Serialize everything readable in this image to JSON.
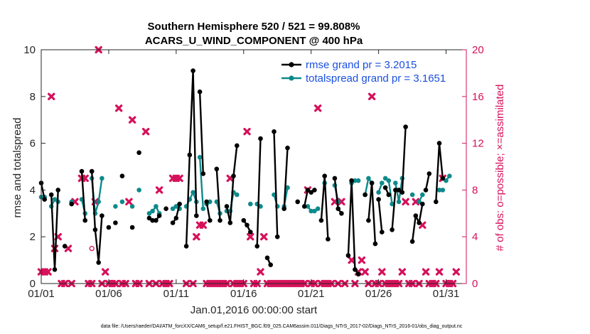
{
  "chart_data": {
    "type": "line",
    "title": "Southern Hemisphere 520 / 521 = 99.808%",
    "subtitle": "ACARS_U_WIND_COMPONENT @ 400 hPa",
    "xlabel": "Jan.01,2016 00:00:00 start",
    "ylabel": "rmse and totalspread",
    "ylabel_right": "# of obs: o=possible; ×=assimilated",
    "xlim": [
      0,
      31.5
    ],
    "ylim": [
      0,
      10
    ],
    "ylim_right": [
      0,
      20
    ],
    "x_ticks": [
      0,
      5,
      10,
      15,
      20,
      25,
      30
    ],
    "x_tick_labels": [
      "01/01",
      "01/06",
      "01/11",
      "01/16",
      "01/21",
      "01/26",
      "01/31"
    ],
    "y_ticks": [
      "0",
      "2",
      "4",
      "6",
      "8",
      "10"
    ],
    "y_ticks_right": [
      "0",
      "4",
      "8",
      "12",
      "16",
      "20"
    ],
    "legend_position": "top-right",
    "series": [
      {
        "name": "rmse grand pr = 3.2015",
        "color": "#000000",
        "axis": "left",
        "segments": [
          [
            [
              0.0,
              4.3
            ],
            [
              0.25,
              3.6
            ]
          ],
          [
            [
              0.75,
              3.8
            ],
            [
              1.0,
              0.6
            ],
            [
              1.25,
              4.0
            ]
          ],
          [
            [
              1.75,
              1.6
            ]
          ],
          [
            [
              2.25,
              3.4
            ]
          ],
          [
            [
              3.0,
              4.8
            ],
            [
              3.25,
              2.7
            ]
          ],
          [
            [
              3.75,
              4.8
            ],
            [
              4.0,
              2.3
            ],
            [
              4.25,
              0.9
            ],
            [
              4.5,
              2.9
            ]
          ],
          [
            [
              5.0,
              2.4
            ]
          ],
          [
            [
              5.5,
              2.6
            ]
          ],
          [
            [
              6.0,
              4.6
            ]
          ],
          [
            [
              6.75,
              2.4
            ]
          ],
          [
            [
              7.25,
              5.6
            ]
          ],
          [
            [
              8.0,
              2.8
            ],
            [
              8.25,
              2.7
            ],
            [
              8.5,
              2.7
            ],
            [
              8.75,
              2.9
            ]
          ],
          [
            [
              9.25,
              3.2
            ]
          ],
          [
            [
              9.75,
              2.6
            ],
            [
              10.0,
              2.8
            ],
            [
              10.25,
              3.4
            ]
          ],
          [
            [
              10.75,
              1.6
            ],
            [
              11.0,
              5.5
            ],
            [
              11.25,
              9.1
            ],
            [
              11.5,
              2.9
            ]
          ],
          [
            [
              11.75,
              8.2
            ],
            [
              12.0,
              4.7
            ]
          ],
          [
            [
              12.25,
              3.5
            ],
            [
              12.5,
              2.7
            ]
          ],
          [
            [
              13.0,
              4.9
            ],
            [
              13.25,
              2.7
            ]
          ],
          [
            [
              13.75,
              3.3
            ],
            [
              14.0,
              2.6
            ],
            [
              14.25,
              4.6
            ],
            [
              14.5,
              5.9
            ]
          ],
          [
            [
              15.0,
              2.7
            ],
            [
              15.25,
              2.5
            ],
            [
              15.5,
              2.2
            ]
          ],
          [
            [
              16.0,
              1.6
            ],
            [
              16.25,
              6.2
            ]
          ],
          [
            [
              16.75,
              1.1
            ],
            [
              17.0,
              0.8
            ]
          ],
          [
            [
              17.25,
              6.5
            ],
            [
              17.5,
              2.0
            ]
          ],
          [
            [
              18.0,
              3.2
            ],
            [
              18.25,
              5.8
            ]
          ],
          [
            [
              19.0,
              3.5
            ]
          ],
          [
            [
              19.5,
              3.3
            ],
            [
              19.75,
              4.0
            ],
            [
              20.0,
              3.9
            ],
            [
              20.25,
              4.0
            ]
          ],
          [
            [
              20.75,
              2.7
            ],
            [
              21.0,
              4.6
            ],
            [
              21.25,
              1.9
            ]
          ],
          [
            [
              21.75,
              4.5
            ],
            [
              22.0,
              3.2
            ],
            [
              22.25,
              3.0
            ]
          ],
          [
            [
              22.75,
              1.2
            ],
            [
              23.0,
              4.4
            ],
            [
              23.25,
              0.6
            ],
            [
              23.5,
              0.4
            ]
          ],
          [
            [
              24.0,
              3.8
            ]
          ],
          [
            [
              24.25,
              2.7
            ],
            [
              24.5,
              4.3
            ],
            [
              24.75,
              1.7
            ]
          ],
          [
            [
              25.0,
              3.6
            ],
            [
              25.25,
              2.2
            ]
          ],
          [
            [
              25.5,
              4.1
            ],
            [
              25.75,
              3.8
            ]
          ],
          [
            [
              26.0,
              2.3
            ],
            [
              26.25,
              4.0
            ],
            [
              26.5,
              4.0
            ],
            [
              26.75,
              3.9
            ],
            [
              27.0,
              6.7
            ]
          ],
          [
            [
              27.5,
              1.8
            ],
            [
              27.75,
              2.9
            ],
            [
              28.0,
              2.6
            ],
            [
              28.25,
              3.4
            ]
          ],
          [
            [
              28.5,
              4.0
            ],
            [
              28.75,
              4.7
            ]
          ],
          [
            [
              29.25,
              3.5
            ],
            [
              29.5,
              6.0
            ],
            [
              29.75,
              4.5
            ]
          ]
        ]
      },
      {
        "name": "totalspread grand pr = 3.1651",
        "color": "#0e8a8a",
        "axis": "left",
        "segments": [
          [
            [
              0.0,
              3.7
            ],
            [
              0.25,
              3.7
            ]
          ],
          [
            [
              0.75,
              3.3
            ],
            [
              1.0,
              3.6
            ],
            [
              1.25,
              3.5
            ]
          ],
          [
            [
              2.25,
              3.5
            ]
          ],
          [
            [
              3.0,
              3.6
            ],
            [
              3.25,
              3.0
            ]
          ],
          [
            [
              3.75,
              4.5
            ],
            [
              4.0,
              3.0
            ],
            [
              4.25,
              3.5
            ],
            [
              4.5,
              4.5
            ]
          ],
          [
            [
              5.5,
              3.3
            ]
          ],
          [
            [
              6.0,
              3.5
            ]
          ],
          [
            [
              6.75,
              3.3
            ]
          ],
          [
            [
              7.25,
              4.0
            ]
          ],
          [
            [
              8.0,
              3.0
            ],
            [
              8.25,
              3.1
            ],
            [
              8.5,
              3.3
            ],
            [
              8.75,
              3.0
            ]
          ],
          [
            [
              9.75,
              3.2
            ],
            [
              10.0,
              3.3
            ],
            [
              10.25,
              3.2
            ]
          ],
          [
            [
              10.75,
              3.3
            ],
            [
              11.0,
              3.6
            ],
            [
              11.25,
              3.9
            ],
            [
              11.5,
              3.5
            ]
          ],
          [
            [
              11.75,
              5.4
            ],
            [
              12.0,
              3.2
            ]
          ],
          [
            [
              12.25,
              3.4
            ],
            [
              12.5,
              3.5
            ]
          ],
          [
            [
              13.0,
              3.5
            ],
            [
              13.25,
              3.0
            ]
          ],
          [
            [
              13.75,
              3.1
            ],
            [
              14.0,
              3.1
            ],
            [
              14.25,
              3.9
            ],
            [
              14.5,
              3.8
            ]
          ],
          [
            [
              15.5,
              3.4
            ]
          ],
          [
            [
              16.0,
              3.4
            ],
            [
              16.25,
              3.3
            ]
          ],
          [
            [
              17.25,
              3.8
            ],
            [
              17.5,
              3.3
            ]
          ],
          [
            [
              18.0,
              3.3
            ],
            [
              18.25,
              4.1
            ]
          ],
          [
            [
              19.0,
              3.5
            ]
          ],
          [
            [
              19.75,
              3.3
            ],
            [
              20.0,
              3.1
            ],
            [
              20.25,
              3.1
            ],
            [
              20.5,
              3.2
            ]
          ],
          [
            [
              21.0,
              4.3
            ]
          ],
          [
            [
              21.75,
              4.2
            ],
            [
              22.0,
              3.5
            ]
          ],
          [
            [
              23.0,
              4.3
            ],
            [
              23.25,
              4.4
            ],
            [
              23.5,
              4.4
            ]
          ],
          [
            [
              24.0,
              3.8
            ],
            [
              24.25,
              4.5
            ],
            [
              24.5,
              4.3
            ]
          ],
          [
            [
              25.0,
              3.9
            ],
            [
              25.25,
              4.3
            ]
          ],
          [
            [
              25.5,
              4.5
            ],
            [
              25.75,
              4.4
            ],
            [
              26.0,
              3.4
            ]
          ],
          [
            [
              26.25,
              4.3
            ],
            [
              26.5,
              3.5
            ],
            [
              26.75,
              4.5
            ]
          ],
          [
            [
              27.5,
              3.8
            ]
          ],
          [
            [
              28.0,
              3.5
            ],
            [
              28.25,
              3.8
            ]
          ],
          [
            [
              29.5,
              4.0
            ],
            [
              29.75,
              4.0
            ]
          ],
          [
            [
              30.0,
              4.4
            ],
            [
              30.25,
              4.6
            ]
          ]
        ]
      }
    ],
    "obs_assimilated": {
      "color": "#d6105a",
      "axis": "right",
      "marker": "x",
      "points": [
        [
          0.0,
          1
        ],
        [
          0.25,
          1
        ],
        [
          0.5,
          1
        ],
        [
          0.75,
          16
        ],
        [
          1.0,
          3
        ],
        [
          1.25,
          4
        ],
        [
          1.5,
          0
        ],
        [
          1.75,
          0
        ],
        [
          2.0,
          3
        ],
        [
          2.25,
          0
        ],
        [
          2.5,
          7
        ],
        [
          3.0,
          9
        ],
        [
          3.25,
          9
        ],
        [
          3.5,
          0
        ],
        [
          3.75,
          0
        ],
        [
          4.0,
          7
        ],
        [
          4.25,
          20
        ],
        [
          4.5,
          0
        ],
        [
          4.75,
          1
        ],
        [
          5.0,
          0
        ],
        [
          5.25,
          0
        ],
        [
          5.5,
          0
        ],
        [
          5.75,
          15
        ],
        [
          6.0,
          0
        ],
        [
          6.25,
          0
        ],
        [
          6.5,
          7
        ],
        [
          6.75,
          14
        ],
        [
          7.0,
          0
        ],
        [
          7.25,
          0
        ],
        [
          7.75,
          13
        ],
        [
          8.0,
          0
        ],
        [
          8.5,
          0
        ],
        [
          8.75,
          8
        ],
        [
          9.0,
          0
        ],
        [
          9.25,
          0
        ],
        [
          9.5,
          0
        ],
        [
          9.75,
          9
        ],
        [
          10.0,
          9
        ],
        [
          10.25,
          9
        ],
        [
          10.75,
          0
        ],
        [
          11.25,
          0
        ],
        [
          11.5,
          4
        ],
        [
          11.75,
          5
        ],
        [
          12.0,
          5
        ],
        [
          12.25,
          0
        ],
        [
          12.5,
          0
        ],
        [
          12.75,
          0
        ],
        [
          13.0,
          0
        ],
        [
          13.25,
          0
        ],
        [
          13.5,
          0
        ],
        [
          13.75,
          0
        ],
        [
          14.0,
          9
        ],
        [
          14.25,
          0
        ],
        [
          14.5,
          0
        ],
        [
          14.75,
          0
        ],
        [
          15.0,
          0
        ],
        [
          15.25,
          13
        ],
        [
          15.5,
          4
        ],
        [
          15.75,
          0
        ],
        [
          16.0,
          0
        ],
        [
          16.25,
          1
        ],
        [
          16.5,
          4
        ],
        [
          16.75,
          0
        ],
        [
          17.0,
          0
        ],
        [
          17.25,
          0
        ],
        [
          17.5,
          0
        ],
        [
          17.75,
          0
        ],
        [
          18.0,
          0
        ],
        [
          18.25,
          0
        ],
        [
          18.5,
          0
        ],
        [
          18.75,
          0
        ],
        [
          19.0,
          0
        ],
        [
          19.25,
          0
        ],
        [
          19.5,
          0
        ],
        [
          19.75,
          8
        ],
        [
          20.0,
          0
        ],
        [
          20.25,
          0
        ],
        [
          20.5,
          15
        ],
        [
          20.75,
          0
        ],
        [
          21.0,
          0
        ],
        [
          21.25,
          0
        ],
        [
          21.5,
          0
        ],
        [
          21.75,
          7
        ],
        [
          22.0,
          0
        ],
        [
          22.25,
          7
        ],
        [
          22.5,
          0
        ],
        [
          23.0,
          2
        ],
        [
          23.25,
          0
        ],
        [
          23.5,
          1
        ],
        [
          23.75,
          2
        ],
        [
          24.0,
          1
        ],
        [
          24.25,
          0
        ],
        [
          24.5,
          16
        ],
        [
          24.75,
          0
        ],
        [
          25.0,
          0
        ],
        [
          25.25,
          1
        ],
        [
          25.5,
          0
        ],
        [
          25.75,
          0
        ],
        [
          26.0,
          0
        ],
        [
          26.25,
          0
        ],
        [
          26.5,
          0
        ],
        [
          26.75,
          1
        ],
        [
          27.0,
          7
        ],
        [
          27.25,
          0
        ],
        [
          27.5,
          0
        ],
        [
          27.75,
          7
        ],
        [
          28.0,
          0
        ],
        [
          28.25,
          5
        ],
        [
          28.5,
          1
        ],
        [
          28.75,
          0
        ],
        [
          29.0,
          0
        ],
        [
          29.25,
          0
        ],
        [
          29.5,
          1
        ],
        [
          29.75,
          9
        ],
        [
          30.0,
          0
        ],
        [
          30.25,
          0
        ],
        [
          30.5,
          0
        ],
        [
          30.75,
          1
        ]
      ]
    },
    "obs_possible": {
      "color": "#d6105a",
      "axis": "right",
      "marker": "o",
      "points": [
        [
          3.75,
          3
        ]
      ]
    },
    "footer": "data file: /Users/raeder/DAI/ATM_forcXX/CAM6_setup/f.e21.FHIST_BGC.f09_025.CAM6assim.011/Diags_NTrS_2017-02/Diags_NTrS_2016-01/obs_diag_output.nc"
  }
}
